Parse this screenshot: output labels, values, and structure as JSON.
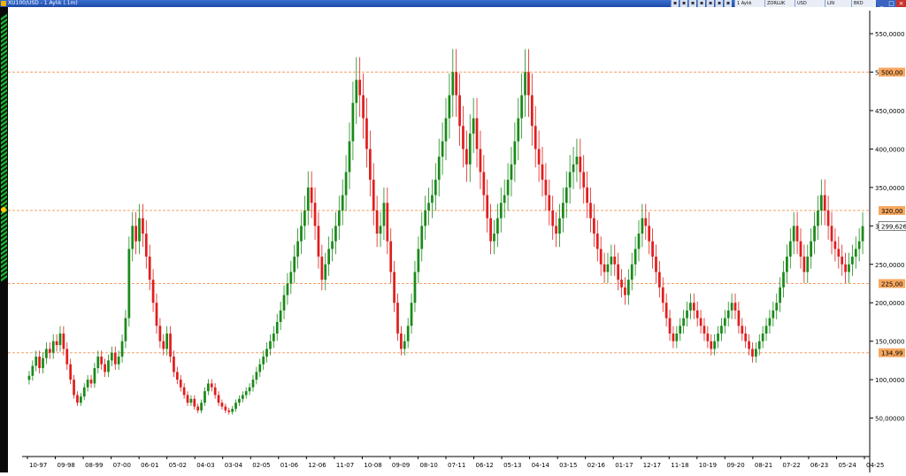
{
  "window": {
    "title": "XU100/USD - 1 Aylık (.1m)",
    "toolbar_fields": [
      "1 Aylık",
      "ZORLUK",
      "USD",
      "LIN",
      "BKD"
    ]
  },
  "colors": {
    "up": "#1a8a1a",
    "down": "#e01e1e",
    "level_line": "#f4a06a",
    "level_label_bg": "#f7a860",
    "last_price_bg": "#ffffff"
  },
  "chart_data": {
    "type": "candlestick",
    "title": "XU100/USD - 1 Aylık (.1m)",
    "y_axis_side": "right",
    "ylim": [
      0,
      580
    ],
    "y_ticks": [
      "50,00000",
      "100,0000",
      "150,0000",
      "200,0000",
      "250,0000",
      "300,0000",
      "350,0000",
      "400,0000",
      "450,0000",
      "500,0000",
      "550,0000"
    ],
    "y_tick_values": [
      50,
      100,
      150,
      200,
      250,
      300,
      350,
      400,
      450,
      500,
      550
    ],
    "x_ticks": [
      "10-97",
      "09-98",
      "08-99",
      "07-00",
      "06-01",
      "05-02",
      "04-03",
      "03-04",
      "02-05",
      "01-06",
      "12-06",
      "11-07",
      "10-08",
      "09-09",
      "08-10",
      "07-11",
      "06-12",
      "05-13",
      "04-14",
      "03-15",
      "02-16",
      "01-17",
      "12-17",
      "11-18",
      "10-19",
      "09-20",
      "08-21",
      "07-22",
      "06-23",
      "05-24",
      "04-25"
    ],
    "levels": [
      {
        "label": "500,00",
        "value": 500
      },
      {
        "label": "320,00",
        "value": 320
      },
      {
        "label": "225,00",
        "value": 225
      },
      {
        "label": "134,99",
        "value": 134.99
      }
    ],
    "last_price": {
      "label": "299,626",
      "value": 299.626
    },
    "series": [
      {
        "values": [
          105,
          118,
          130,
          115,
          128,
          140,
          135,
          150,
          145,
          160,
          140,
          120,
          100,
          80,
          70,
          78,
          90,
          100,
          95,
          115,
          130,
          120,
          110,
          125,
          135,
          120,
          130,
          150,
          180,
          270,
          300,
          280,
          310,
          290,
          260,
          230,
          200,
          170,
          150,
          140,
          160,
          130,
          110,
          100,
          90,
          80,
          70,
          75,
          65,
          60,
          70,
          85,
          95,
          90,
          80,
          70,
          65,
          60,
          58,
          62,
          70,
          75,
          80,
          85,
          90,
          100,
          110,
          120,
          130,
          140,
          150,
          160,
          175,
          190,
          210,
          225,
          240,
          260,
          280,
          300,
          320,
          350,
          330,
          300,
          260,
          230,
          250,
          270,
          280,
          300,
          320,
          340,
          370,
          410,
          460,
          490,
          470,
          440,
          400,
          360,
          320,
          290,
          300,
          330,
          280,
          240,
          200,
          160,
          140,
          150,
          170,
          200,
          240,
          270,
          300,
          320,
          330,
          340,
          360,
          390,
          410,
          440,
          470,
          500,
          470,
          430,
          400,
          380,
          420,
          440,
          400,
          370,
          340,
          310,
          280,
          290,
          310,
          330,
          340,
          360,
          380,
          410,
          440,
          470,
          500,
          470,
          430,
          400,
          380,
          360,
          340,
          320,
          300,
          290,
          310,
          330,
          350,
          370,
          380,
          390,
          370,
          350,
          330,
          310,
          290,
          270,
          250,
          240,
          250,
          260,
          250,
          230,
          220,
          210,
          230,
          250,
          270,
          290,
          310,
          300,
          280,
          260,
          240,
          220,
          200,
          180,
          160,
          150,
          160,
          170,
          180,
          190,
          200,
          190,
          180,
          170,
          160,
          150,
          140,
          150,
          160,
          170,
          180,
          190,
          200,
          190,
          170,
          160,
          150,
          140,
          130,
          140,
          150,
          160,
          170,
          180,
          190,
          200,
          220,
          240,
          260,
          280,
          300,
          280,
          260,
          240,
          260,
          280,
          300,
          320,
          340,
          320,
          300,
          280,
          270,
          260,
          250,
          240,
          250,
          260,
          270,
          280,
          299.626
        ]
      }
    ]
  }
}
